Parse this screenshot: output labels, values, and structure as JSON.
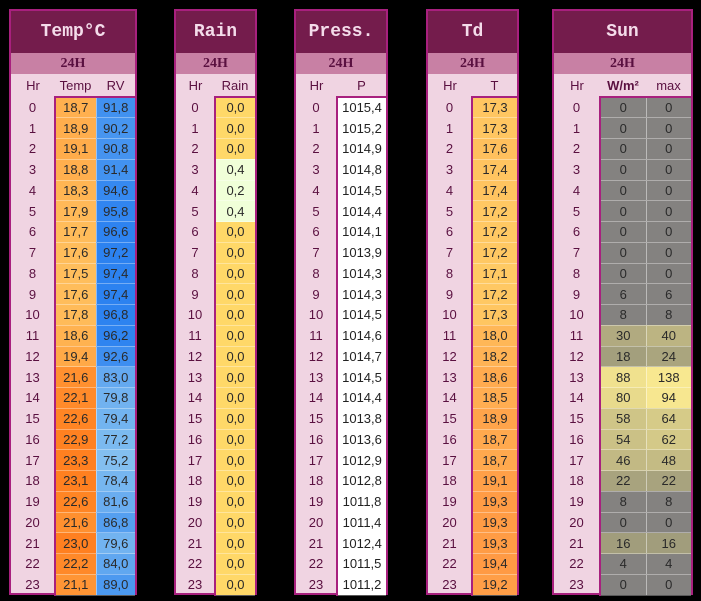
{
  "sub_label": "24H",
  "hr_label": "Hr",
  "hours": [
    0,
    1,
    2,
    3,
    4,
    5,
    6,
    7,
    8,
    9,
    10,
    11,
    12,
    13,
    14,
    15,
    16,
    17,
    18,
    19,
    20,
    21,
    22,
    23
  ],
  "temp": {
    "title": "Temp°C",
    "col_temp": "Temp",
    "col_rv": "RV",
    "temp_values": [
      "18,7",
      "18,9",
      "19,1",
      "18,8",
      "18,3",
      "17,9",
      "17,7",
      "17,6",
      "17,5",
      "17,6",
      "17,8",
      "18,6",
      "19,4",
      "21,6",
      "22,1",
      "22,6",
      "22,9",
      "23,3",
      "23,1",
      "22,6",
      "21,6",
      "23,0",
      "22,2",
      "21,1"
    ],
    "rv_values": [
      "91,8",
      "90,2",
      "90,8",
      "91,4",
      "94,6",
      "95,8",
      "96,6",
      "97,2",
      "97,4",
      "97,4",
      "96,8",
      "96,2",
      "92,6",
      "83,0",
      "79,8",
      "79,4",
      "77,2",
      "75,2",
      "78,4",
      "81,6",
      "86,8",
      "79,6",
      "84,0",
      "89,0"
    ]
  },
  "rain": {
    "title": "Rain",
    "col": "Rain",
    "values": [
      "0,0",
      "0,0",
      "0,0",
      "0,4",
      "0,2",
      "0,4",
      "0,0",
      "0,0",
      "0,0",
      "0,0",
      "0,0",
      "0,0",
      "0,0",
      "0,0",
      "0,0",
      "0,0",
      "0,0",
      "0,0",
      "0,0",
      "0,0",
      "0,0",
      "0,0",
      "0,0",
      "0,0"
    ]
  },
  "press": {
    "title": "Press.",
    "col": "P",
    "values": [
      "1015,4",
      "1015,2",
      "1014,9",
      "1014,8",
      "1014,5",
      "1014,4",
      "1014,1",
      "1013,9",
      "1014,3",
      "1014,3",
      "1014,5",
      "1014,6",
      "1014,7",
      "1014,5",
      "1014,4",
      "1013,8",
      "1013,6",
      "1012,9",
      "1012,8",
      "1011,8",
      "1011,4",
      "1012,4",
      "1011,5",
      "1011,2"
    ]
  },
  "td": {
    "title": "Td",
    "col": "T",
    "values": [
      "17,3",
      "17,3",
      "17,6",
      "17,4",
      "17,4",
      "17,2",
      "17,2",
      "17,2",
      "17,1",
      "17,2",
      "17,3",
      "18,0",
      "18,2",
      "18,6",
      "18,5",
      "18,9",
      "18,7",
      "18,7",
      "19,1",
      "19,3",
      "19,3",
      "19,3",
      "19,4",
      "19,2"
    ]
  },
  "sun": {
    "title": "Sun",
    "col_w": "W/m²",
    "col_max": "max",
    "w_values": [
      "0",
      "0",
      "0",
      "0",
      "0",
      "0",
      "0",
      "0",
      "0",
      "6",
      "8",
      "30",
      "18",
      "88",
      "80",
      "58",
      "54",
      "46",
      "22",
      "8",
      "0",
      "16",
      "4",
      "0"
    ],
    "max_values": [
      "0",
      "0",
      "0",
      "0",
      "0",
      "0",
      "0",
      "0",
      "0",
      "6",
      "8",
      "40",
      "24",
      "138",
      "94",
      "64",
      "62",
      "48",
      "22",
      "8",
      "0",
      "16",
      "4",
      "0"
    ]
  },
  "colors": {
    "panel_border": "#a8207e",
    "title_bg": "#741c4c",
    "sub_bg": "#c880a4",
    "row_bg": "#f0d4e2",
    "rain_dry": "#ffd868",
    "rain_wet": "#f0ffd8"
  }
}
